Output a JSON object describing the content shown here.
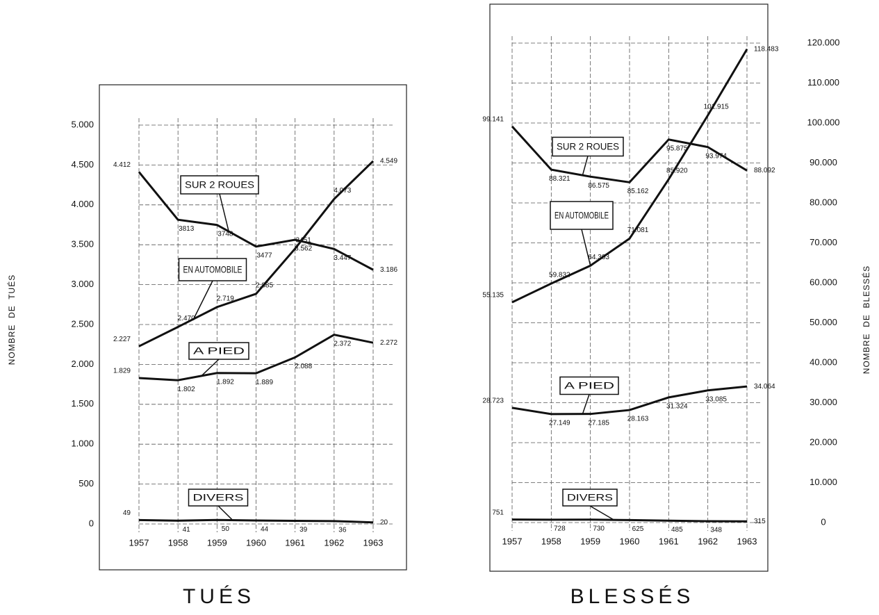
{
  "chart_data": [
    {
      "type": "line",
      "title": "TUÉS",
      "y_label": "NOMBRE  DE  TUÉS",
      "categories": [
        "1957",
        "1958",
        "1959",
        "1960",
        "1961",
        "1962",
        "1963"
      ],
      "ylim": [
        0,
        5000
      ],
      "yticks": [
        0,
        500,
        {
          "value": 1000,
          "label": "1.000"
        },
        {
          "value": 1500,
          "label": "1.500"
        },
        {
          "value": 2000,
          "label": "2.000"
        },
        {
          "value": 2500,
          "label": "2.500"
        },
        {
          "value": 3000,
          "label": "3.000"
        },
        {
          "value": 3500,
          "label": "3.500"
        },
        {
          "value": 4000,
          "label": "4.000"
        },
        {
          "value": 4500,
          "label": "4.500"
        },
        {
          "value": 5000,
          "label": "5.000"
        }
      ],
      "grid": true,
      "series": [
        {
          "name": "SUR 2 ROUES",
          "color": "#111111",
          "values": [
            4412,
            3813,
            3748,
            3477,
            3562,
            3447,
            3186
          ],
          "value_labels": [
            "4.412",
            "3813",
            "3748",
            "3477",
            "3.562",
            "3.447",
            "3.186"
          ]
        },
        {
          "name": "EN AUTOMOBILE",
          "color": "#111111",
          "values": [
            2227,
            2470,
            2719,
            2885,
            3451,
            4073,
            4549
          ],
          "value_labels": [
            "2.227",
            "2.470",
            "2.719",
            "2.885",
            "3451",
            "4.073",
            "4.549"
          ]
        },
        {
          "name": "A PIED",
          "color": "#111111",
          "values": [
            1829,
            1802,
            1892,
            1889,
            2088,
            2372,
            2272
          ],
          "value_labels": [
            "1.829",
            "1.802",
            "1.892",
            "1.889",
            "2.088",
            "2.372",
            "2.272"
          ]
        },
        {
          "name": "DIVERS",
          "color": "#111111",
          "values": [
            49,
            41,
            50,
            44,
            39,
            36,
            20
          ]
        }
      ]
    },
    {
      "type": "line",
      "title": "BLESSÉS",
      "y_label": "NOMBRE  DE  BLESSÉS",
      "categories": [
        "1957",
        "1958",
        "1959",
        "1960",
        "1961",
        "1962",
        "1963"
      ],
      "ylim": [
        0,
        120000
      ],
      "yticks": [
        0,
        {
          "value": 10000,
          "label": "10.000"
        },
        {
          "value": 20000,
          "label": "20.000"
        },
        {
          "value": 30000,
          "label": "30.000"
        },
        {
          "value": 40000,
          "label": "40.000"
        },
        {
          "value": 50000,
          "label": "50.000"
        },
        {
          "value": 60000,
          "label": "60.000"
        },
        {
          "value": 70000,
          "label": "70.000"
        },
        {
          "value": 80000,
          "label": "80.000"
        },
        {
          "value": 90000,
          "label": "90.000"
        },
        {
          "value": 100000,
          "label": "100.000"
        },
        {
          "value": 110000,
          "label": "110.000"
        },
        {
          "value": 120000,
          "label": "120.000"
        }
      ],
      "grid": true,
      "series": [
        {
          "name": "SUR 2 ROUES",
          "color": "#111111",
          "values": [
            99141,
            88321,
            86575,
            85162,
            95875,
            93974,
            88092
          ],
          "value_labels": [
            "99.141",
            "88.321",
            "86.575",
            "85.162",
            "95.875",
            "93.974",
            "88.092"
          ]
        },
        {
          "name": "EN AUTOMOBILE",
          "color": "#111111",
          "values": [
            55135,
            59832,
            64303,
            71081,
            85920,
            101915,
            118483
          ],
          "value_labels": [
            "55.135",
            "59.832",
            "64.303",
            "71.081",
            "85.920",
            "101.915",
            "118.483"
          ]
        },
        {
          "name": "A PIED",
          "color": "#111111",
          "values": [
            28723,
            27149,
            27185,
            28163,
            31324,
            33085,
            34064
          ],
          "value_labels": [
            "28.723",
            "27.149",
            "27.185",
            "28.163",
            "31.324",
            "33.085",
            "34.064"
          ]
        },
        {
          "name": "DIVERS",
          "color": "#111111",
          "values": [
            751,
            728,
            730,
            625,
            485,
            348,
            315
          ]
        }
      ]
    }
  ]
}
